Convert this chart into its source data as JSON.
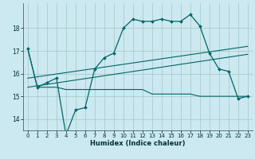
{
  "title": "",
  "xlabel": "Humidex (Indice chaleur)",
  "background_color": "#cce8f0",
  "grid_color": "#aacccc",
  "line_color": "#006666",
  "x_ticks": [
    0,
    1,
    2,
    3,
    4,
    5,
    6,
    7,
    8,
    9,
    10,
    11,
    12,
    13,
    14,
    15,
    16,
    17,
    18,
    19,
    20,
    21,
    22,
    23
  ],
  "ylim": [
    13.5,
    19.1
  ],
  "yticks": [
    14,
    15,
    16,
    17,
    18
  ],
  "series_main": {
    "x": [
      0,
      1,
      2,
      3,
      4,
      5,
      6,
      7,
      8,
      9,
      10,
      11,
      12,
      13,
      14,
      15,
      16,
      17,
      18,
      19,
      20,
      21,
      22,
      23
    ],
    "y": [
      17.1,
      15.4,
      15.6,
      15.8,
      13.3,
      14.4,
      14.5,
      16.2,
      16.7,
      16.9,
      18.0,
      18.4,
      18.3,
      18.3,
      18.4,
      18.3,
      18.3,
      18.6,
      18.1,
      16.9,
      16.2,
      16.1,
      14.9,
      15.0
    ]
  },
  "series_min": {
    "x": [
      0,
      1,
      2,
      3,
      4,
      5,
      6,
      7,
      8,
      9,
      10,
      11,
      12,
      13,
      14,
      15,
      16,
      17,
      18,
      19,
      20,
      21,
      22,
      23
    ],
    "y": [
      17.1,
      15.4,
      15.4,
      15.4,
      15.3,
      15.3,
      15.3,
      15.3,
      15.3,
      15.3,
      15.3,
      15.3,
      15.3,
      15.1,
      15.1,
      15.1,
      15.1,
      15.1,
      15.0,
      15.0,
      15.0,
      15.0,
      15.0,
      15.0
    ]
  },
  "series_diag1": {
    "x": [
      0,
      23
    ],
    "y": [
      15.4,
      16.85
    ]
  },
  "series_diag2": {
    "x": [
      0,
      23
    ],
    "y": [
      15.8,
      17.2
    ]
  }
}
